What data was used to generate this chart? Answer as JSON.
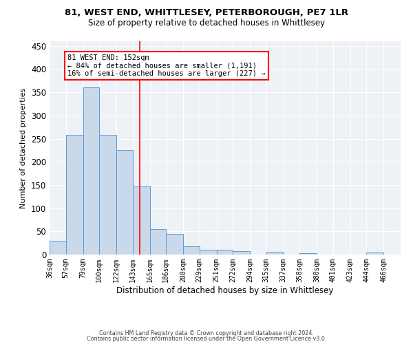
{
  "title": "81, WEST END, WHITTLESEY, PETERBOROUGH, PE7 1LR",
  "subtitle": "Size of property relative to detached houses in Whittlesey",
  "xlabel": "Distribution of detached houses by size in Whittlesey",
  "ylabel": "Number of detached properties",
  "bin_labels": [
    "36sqm",
    "57sqm",
    "79sqm",
    "100sqm",
    "122sqm",
    "143sqm",
    "165sqm",
    "186sqm",
    "208sqm",
    "229sqm",
    "251sqm",
    "272sqm",
    "294sqm",
    "315sqm",
    "337sqm",
    "358sqm",
    "380sqm",
    "401sqm",
    "423sqm",
    "444sqm",
    "466sqm"
  ],
  "bin_edges": [
    36,
    57,
    79,
    100,
    122,
    143,
    165,
    186,
    208,
    229,
    251,
    272,
    294,
    315,
    337,
    358,
    380,
    401,
    423,
    444,
    466
  ],
  "bar_heights": [
    30,
    258,
    360,
    258,
    226,
    148,
    55,
    44,
    18,
    11,
    11,
    7,
    0,
    6,
    0,
    3,
    0,
    0,
    0,
    4
  ],
  "bar_facecolor": "#c9d9ea",
  "bar_edgecolor": "#5b9bd5",
  "vline_x": 152,
  "vline_color": "red",
  "annotation_line1": "81 WEST END: 152sqm",
  "annotation_line2": "← 84% of detached houses are smaller (1,191)",
  "annotation_line3": "16% of semi-detached houses are larger (227) →",
  "annotation_bbox_edgecolor": "red",
  "annotation_bbox_facecolor": "white",
  "ylim": [
    0,
    460
  ],
  "yticks": [
    0,
    50,
    100,
    150,
    200,
    250,
    300,
    350,
    400,
    450
  ],
  "background_color": "#eef2f7",
  "grid_color": "#ffffff",
  "footer_line1": "Contains HM Land Registry data © Crown copyright and database right 2024.",
  "footer_line2": "Contains public sector information licensed under the Open Government Licence v3.0."
}
